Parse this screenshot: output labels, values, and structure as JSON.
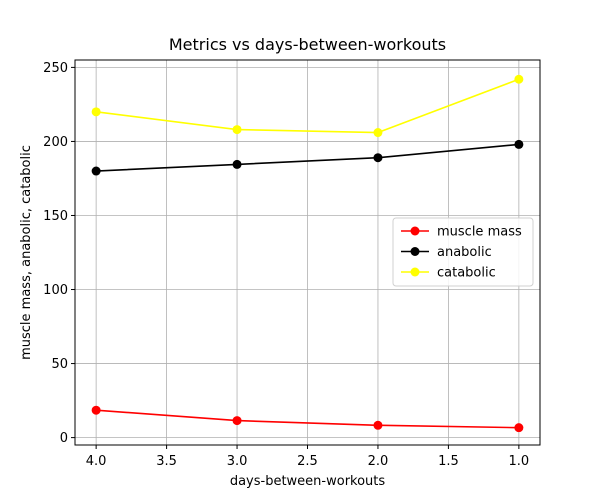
{
  "chart_data": {
    "type": "line",
    "title": "Metrics vs days-between-workouts",
    "xlabel": "days-between-workouts",
    "ylabel": "muscle mass, anabolic, catabolic",
    "x": [
      4.0,
      3.0,
      2.0,
      1.0
    ],
    "xlim": [
      4.15,
      0.85
    ],
    "ylim": [
      -5,
      255
    ],
    "x_inverted": true,
    "xticks": [
      4.0,
      3.5,
      3.0,
      2.5,
      2.0,
      1.5,
      1.0
    ],
    "xtick_labels": [
      "4.0",
      "3.5",
      "3.0",
      "2.5",
      "2.0",
      "1.5",
      "1.0"
    ],
    "yticks": [
      0,
      50,
      100,
      150,
      200,
      250
    ],
    "ytick_labels": [
      "0",
      "50",
      "100",
      "150",
      "200",
      "250"
    ],
    "grid": true,
    "legend_position": "center-right",
    "series": [
      {
        "name": "muscle mass",
        "color": "#ff0000",
        "values": [
          18.5,
          11.5,
          8.3,
          6.7
        ]
      },
      {
        "name": "anabolic",
        "color": "#000000",
        "values": [
          180,
          184.5,
          189,
          198
        ]
      },
      {
        "name": "catabolic",
        "color": "#ffff00",
        "values": [
          220,
          208,
          206,
          242
        ]
      }
    ]
  }
}
